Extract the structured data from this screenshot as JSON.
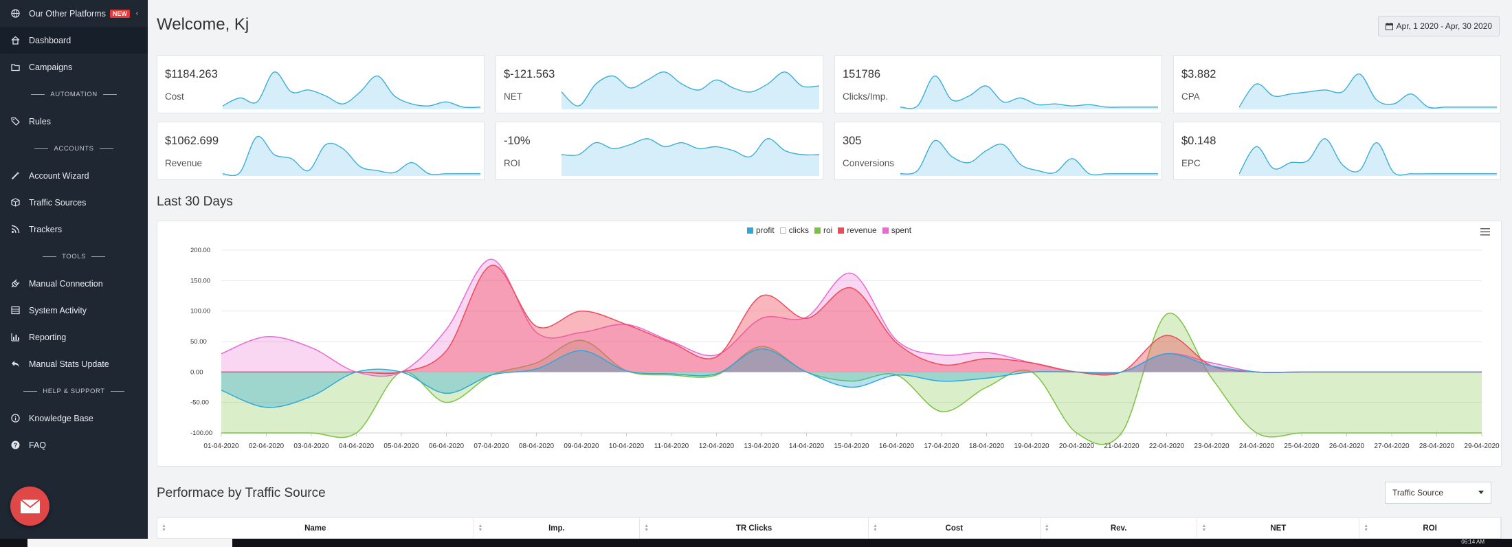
{
  "sidebar": {
    "items": [
      {
        "label": "Our Other Platforms",
        "icon": "globe-icon",
        "badge": "NEW"
      },
      {
        "label": "Dashboard",
        "icon": "home-icon"
      },
      {
        "label": "Campaigns",
        "icon": "folder-icon"
      },
      {
        "section": "AUTOMATION"
      },
      {
        "label": "Rules",
        "icon": "tags-icon"
      },
      {
        "section": "ACCOUNTS"
      },
      {
        "label": "Account Wizard",
        "icon": "wand-icon"
      },
      {
        "label": "Traffic Sources",
        "icon": "cube-icon"
      },
      {
        "label": "Trackers",
        "icon": "rss-icon"
      },
      {
        "section": "TOOLS"
      },
      {
        "label": "Manual Connection",
        "icon": "plug-icon"
      },
      {
        "label": "System Activity",
        "icon": "list-icon"
      },
      {
        "label": "Reporting",
        "icon": "bar-chart-icon"
      },
      {
        "label": "Manual Stats Update",
        "icon": "reply-icon"
      },
      {
        "section": "HELP & SUPPORT"
      },
      {
        "label": "Knowledge Base",
        "icon": "info-icon"
      },
      {
        "label": "FAQ",
        "icon": "question-icon"
      }
    ]
  },
  "header": {
    "welcome": "Welcome, Kj",
    "date_range": "Apr, 1 2020 - Apr, 30 2020"
  },
  "kpis": [
    {
      "value": "$1184.263",
      "label": "Cost"
    },
    {
      "value": "$-121.563",
      "label": "NET"
    },
    {
      "value": "151786",
      "label": "Clicks/Imp."
    },
    {
      "value": "$3.882",
      "label": "CPA"
    },
    {
      "value": "$1062.699",
      "label": "Revenue"
    },
    {
      "value": "-10%",
      "label": "ROI"
    },
    {
      "value": "305",
      "label": "Conversions"
    },
    {
      "value": "$0.148",
      "label": "EPC"
    }
  ],
  "section_titles": {
    "last30": "Last 30 Days",
    "performance": "Performace by Traffic Source"
  },
  "chart_data": {
    "type": "area",
    "x": [
      "01-04-2020",
      "02-04-2020",
      "03-04-2020",
      "04-04-2020",
      "05-04-2020",
      "06-04-2020",
      "07-04-2020",
      "08-04-2020",
      "09-04-2020",
      "10-04-2020",
      "11-04-2020",
      "12-04-2020",
      "13-04-2020",
      "14-04-2020",
      "15-04-2020",
      "16-04-2020",
      "17-04-2020",
      "18-04-2020",
      "19-04-2020",
      "20-04-2020",
      "21-04-2020",
      "22-04-2020",
      "23-04-2020",
      "24-04-2020",
      "25-04-2020",
      "26-04-2020",
      "27-04-2020",
      "28-04-2020",
      "29-04-2020"
    ],
    "y_ticks": [
      "200.00",
      "150.00",
      "100.00",
      "50.00",
      "0.00",
      "-50.00",
      "-100.00"
    ],
    "ylim": [
      -100,
      200
    ],
    "legend_position": "top-center",
    "grid": true,
    "series": [
      {
        "name": "profit",
        "color": "#2ea8d8",
        "values": [
          -30,
          -58,
          -40,
          0,
          0,
          -35,
          -5,
          5,
          35,
          2,
          -3,
          -3,
          38,
          0,
          -25,
          -5,
          -15,
          -10,
          0,
          0,
          0,
          30,
          10,
          0,
          0,
          0,
          0,
          0,
          0
        ]
      },
      {
        "name": "clicks",
        "color": "#ffffff",
        "values": [
          0,
          0,
          0,
          0,
          0,
          0,
          0,
          0,
          0,
          0,
          0,
          0,
          0,
          0,
          0,
          0,
          0,
          0,
          0,
          0,
          0,
          0,
          0,
          0,
          0,
          0,
          0,
          0,
          0
        ]
      },
      {
        "name": "roi",
        "color": "#7cc242",
        "values": [
          -100,
          -100,
          -100,
          -100,
          0,
          -50,
          -5,
          15,
          52,
          2,
          -5,
          -5,
          42,
          0,
          -15,
          -5,
          -65,
          -25,
          0,
          -100,
          -100,
          95,
          -10,
          -100,
          -100,
          -100,
          -100,
          -100,
          -100
        ]
      },
      {
        "name": "revenue",
        "color": "#f04a5a",
        "values": [
          0,
          0,
          0,
          0,
          0,
          35,
          175,
          75,
          100,
          78,
          48,
          25,
          125,
          88,
          138,
          48,
          12,
          22,
          15,
          0,
          0,
          60,
          10,
          0,
          0,
          0,
          0,
          0,
          0
        ]
      },
      {
        "name": "spent",
        "color": "#e86ad2",
        "values": [
          30,
          58,
          40,
          0,
          0,
          70,
          185,
          65,
          65,
          78,
          50,
          28,
          88,
          90,
          162,
          52,
          28,
          32,
          15,
          0,
          0,
          30,
          15,
          0,
          0,
          0,
          0,
          0,
          0
        ]
      }
    ]
  },
  "table": {
    "select_value": "Traffic Source",
    "columns": [
      "Name",
      "Imp.",
      "TR Clicks",
      "Cost",
      "Rev.",
      "NET",
      "ROI"
    ]
  },
  "taskbar": {
    "time": "06:14 AM"
  }
}
